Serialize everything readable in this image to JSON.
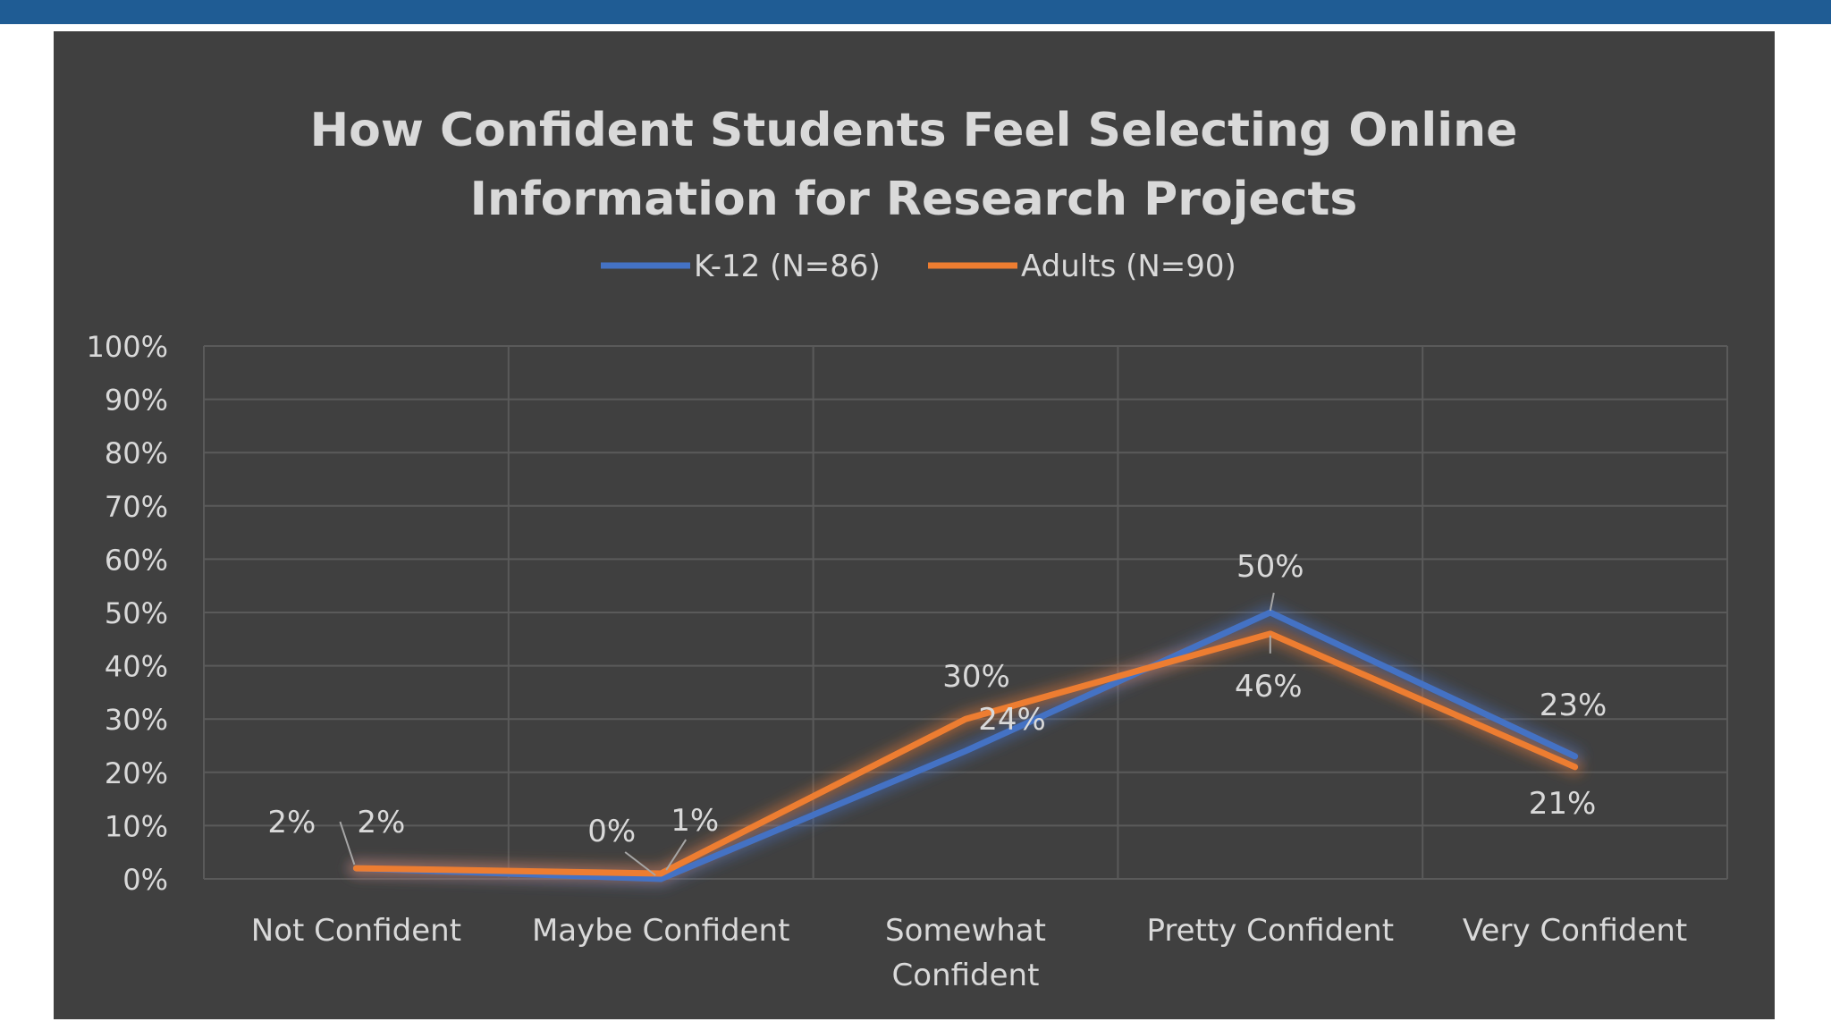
{
  "colors": {
    "top_bar": "#1f5c94",
    "chart_background": "#404040",
    "grid": "#5a5a5a",
    "text": "#d9d9d9",
    "series_k12": "#4472c4",
    "series_adults": "#ed7d31"
  },
  "chart_data": {
    "type": "line",
    "title": "How Confident Students Feel Selecting Online Information for Research Projects",
    "title_lines": [
      "How Confident Students Feel Selecting Online",
      "Information for Research Projects"
    ],
    "xlabel": "",
    "ylabel": "",
    "categories": [
      "Not Confident",
      "Maybe Confident",
      "Somewhat Confident",
      "Pretty Confident",
      "Very Confident"
    ],
    "category_lines": [
      [
        "Not Confident"
      ],
      [
        "Maybe Confident"
      ],
      [
        "Somewhat",
        "Confident"
      ],
      [
        "Pretty Confident"
      ],
      [
        "Very Confident"
      ]
    ],
    "ylim": [
      0,
      100
    ],
    "y_ticks": [
      "0%",
      "10%",
      "20%",
      "30%",
      "40%",
      "50%",
      "60%",
      "70%",
      "80%",
      "90%",
      "100%"
    ],
    "grid": true,
    "legend_position": "top-center",
    "series": [
      {
        "name": "K-12 (N=86)",
        "values": [
          2,
          0,
          24,
          50,
          23
        ],
        "labels": [
          "2%",
          "0%",
          "24%",
          "50%",
          "23%"
        ]
      },
      {
        "name": "Adults (N=90)",
        "values": [
          2,
          1,
          30,
          46,
          21
        ],
        "labels": [
          "2%",
          "1%",
          "30%",
          "46%",
          "21%"
        ]
      }
    ]
  }
}
